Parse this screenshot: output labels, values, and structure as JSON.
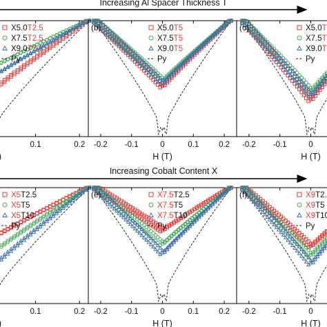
{
  "arrows": {
    "top": "Increasing Al Spacer Thickness T",
    "bottom": "Increasing Cobalt Content X"
  },
  "x_axis_title": "H (T)",
  "colors": {
    "red": "#e53935",
    "green": "#43a85a",
    "blue": "#3d6fa8",
    "py": "#222222",
    "axis": "#000000"
  },
  "chart_data": [
    {
      "type": "line",
      "panel": "(a)",
      "xlim": [
        -0.02,
        0.22
      ],
      "xticks": [
        "0",
        "0.1",
        "0.2"
      ],
      "legend": [
        {
          "marker": "square",
          "parts": [
            {
              "t": "X5.0",
              "c": "black"
            },
            {
              "t": "T2.5",
              "c": "red"
            }
          ]
        },
        {
          "marker": "circle",
          "parts": [
            {
              "t": "X7.5",
              "c": "black"
            },
            {
              "t": "T2.5",
              "c": "red"
            }
          ]
        },
        {
          "marker": "triangle",
          "parts": [
            {
              "t": "X9.0",
              "c": "black"
            },
            {
              "t": "T2.5",
              "c": "red"
            }
          ]
        },
        {
          "marker": "dash",
          "parts": [
            {
              "t": "Py",
              "c": "black"
            }
          ]
        }
      ],
      "series": [
        {
          "color": "red",
          "vmin": 0.38,
          "edge": 1.0
        },
        {
          "color": "green",
          "vmin": 0.58,
          "edge": 1.0
        },
        {
          "color": "blue",
          "vmin": 0.5,
          "edge": 1.0
        }
      ]
    },
    {
      "type": "line",
      "panel": "(b)",
      "xlim": [
        -0.24,
        0.24
      ],
      "xticks": [
        "-0.2",
        "-0.1",
        "0",
        "0.1",
        "0.2"
      ],
      "legend": [
        {
          "marker": "square",
          "parts": [
            {
              "t": "X5.0",
              "c": "black"
            },
            {
              "t": "T5",
              "c": "red"
            }
          ]
        },
        {
          "marker": "circle",
          "parts": [
            {
              "t": "X7.5",
              "c": "black"
            },
            {
              "t": "T5",
              "c": "red"
            }
          ]
        },
        {
          "marker": "triangle",
          "parts": [
            {
              "t": "X9.0",
              "c": "black"
            },
            {
              "t": "T5",
              "c": "red"
            }
          ]
        },
        {
          "marker": "dash",
          "parts": [
            {
              "t": "Py",
              "c": "black"
            }
          ]
        }
      ],
      "series": [
        {
          "color": "red",
          "vmin": 0.42,
          "edge": 1.0
        },
        {
          "color": "green",
          "vmin": 0.47,
          "edge": 1.0
        },
        {
          "color": "blue",
          "vmin": 0.45,
          "edge": 1.0
        }
      ]
    },
    {
      "type": "line",
      "panel": "(c)",
      "xlim": [
        -0.24,
        0.24
      ],
      "xticks": [
        "-0.2",
        "-0.1",
        "0",
        "0.1",
        "0.2"
      ],
      "legend": [
        {
          "marker": "square",
          "parts": [
            {
              "t": "X5.0",
              "c": "black"
            },
            {
              "t": "T10",
              "c": "red"
            }
          ]
        },
        {
          "marker": "circle",
          "parts": [
            {
              "t": "X7.5",
              "c": "black"
            },
            {
              "t": "T10",
              "c": "red"
            }
          ]
        },
        {
          "marker": "triangle",
          "parts": [
            {
              "t": "X9.0",
              "c": "black"
            },
            {
              "t": "T10",
              "c": "red"
            }
          ]
        },
        {
          "marker": "dash",
          "parts": [
            {
              "t": "Py",
              "c": "black"
            }
          ]
        }
      ],
      "series": [
        {
          "color": "red",
          "vmin": 0.3,
          "edge": 1.0
        },
        {
          "color": "green",
          "vmin": 0.38,
          "edge": 1.0
        },
        {
          "color": "blue",
          "vmin": 0.34,
          "edge": 1.0
        }
      ]
    },
    {
      "type": "line",
      "panel": "(d)",
      "xlim": [
        -0.02,
        0.22
      ],
      "xticks": [
        "0",
        "0.1",
        "0.2"
      ],
      "legend": [
        {
          "marker": "square",
          "parts": [
            {
              "t": "X5",
              "c": "red"
            },
            {
              "t": "T2.5",
              "c": "black"
            }
          ]
        },
        {
          "marker": "circle",
          "parts": [
            {
              "t": "X5",
              "c": "red"
            },
            {
              "t": "T5",
              "c": "black"
            }
          ]
        },
        {
          "marker": "triangle",
          "parts": [
            {
              "t": "X5",
              "c": "red"
            },
            {
              "t": "T10",
              "c": "black"
            }
          ]
        },
        {
          "marker": "dash",
          "parts": [
            {
              "t": "Py",
              "c": "black"
            }
          ]
        }
      ],
      "series": [
        {
          "color": "red",
          "vmin": 0.55,
          "edge": 1.0
        },
        {
          "color": "green",
          "vmin": 0.42,
          "edge": 1.0
        },
        {
          "color": "blue",
          "vmin": 0.3,
          "edge": 1.0
        }
      ]
    },
    {
      "type": "line",
      "panel": "(e)",
      "xlim": [
        -0.24,
        0.24
      ],
      "xticks": [
        "-0.2",
        "-0.1",
        "0",
        "0.1",
        "0.2"
      ],
      "legend": [
        {
          "marker": "square",
          "parts": [
            {
              "t": "X7.5",
              "c": "red"
            },
            {
              "t": "T2.5",
              "c": "black"
            }
          ]
        },
        {
          "marker": "circle",
          "parts": [
            {
              "t": "X7.5",
              "c": "red"
            },
            {
              "t": "T5",
              "c": "black"
            }
          ]
        },
        {
          "marker": "triangle",
          "parts": [
            {
              "t": "X7.5",
              "c": "red"
            },
            {
              "t": "T10",
              "c": "black"
            }
          ]
        },
        {
          "marker": "dash",
          "parts": [
            {
              "t": "Py",
              "c": "black"
            }
          ]
        }
      ],
      "series": [
        {
          "color": "red",
          "vmin": 0.62,
          "edge": 1.0
        },
        {
          "color": "green",
          "vmin": 0.5,
          "edge": 1.0
        },
        {
          "color": "blue",
          "vmin": 0.42,
          "edge": 1.0
        }
      ]
    },
    {
      "type": "line",
      "panel": "(f)",
      "xlim": [
        -0.24,
        0.24
      ],
      "xticks": [
        "-0.2",
        "-0.1",
        "0",
        "0.1",
        "0.2"
      ],
      "legend": [
        {
          "marker": "square",
          "parts": [
            {
              "t": "X9",
              "c": "red"
            },
            {
              "t": "T2.5",
              "c": "black"
            }
          ]
        },
        {
          "marker": "circle",
          "parts": [
            {
              "t": "X9",
              "c": "red"
            },
            {
              "t": "T5",
              "c": "black"
            }
          ]
        },
        {
          "marker": "triangle",
          "parts": [
            {
              "t": "X9",
              "c": "red"
            },
            {
              "t": "T10",
              "c": "black"
            }
          ]
        },
        {
          "marker": "dash",
          "parts": [
            {
              "t": "Py",
              "c": "black"
            }
          ]
        }
      ],
      "series": [
        {
          "color": "red",
          "vmin": 0.48,
          "edge": 1.0
        },
        {
          "color": "green",
          "vmin": 0.4,
          "edge": 1.0
        },
        {
          "color": "blue",
          "vmin": 0.33,
          "edge": 1.0
        }
      ]
    }
  ]
}
